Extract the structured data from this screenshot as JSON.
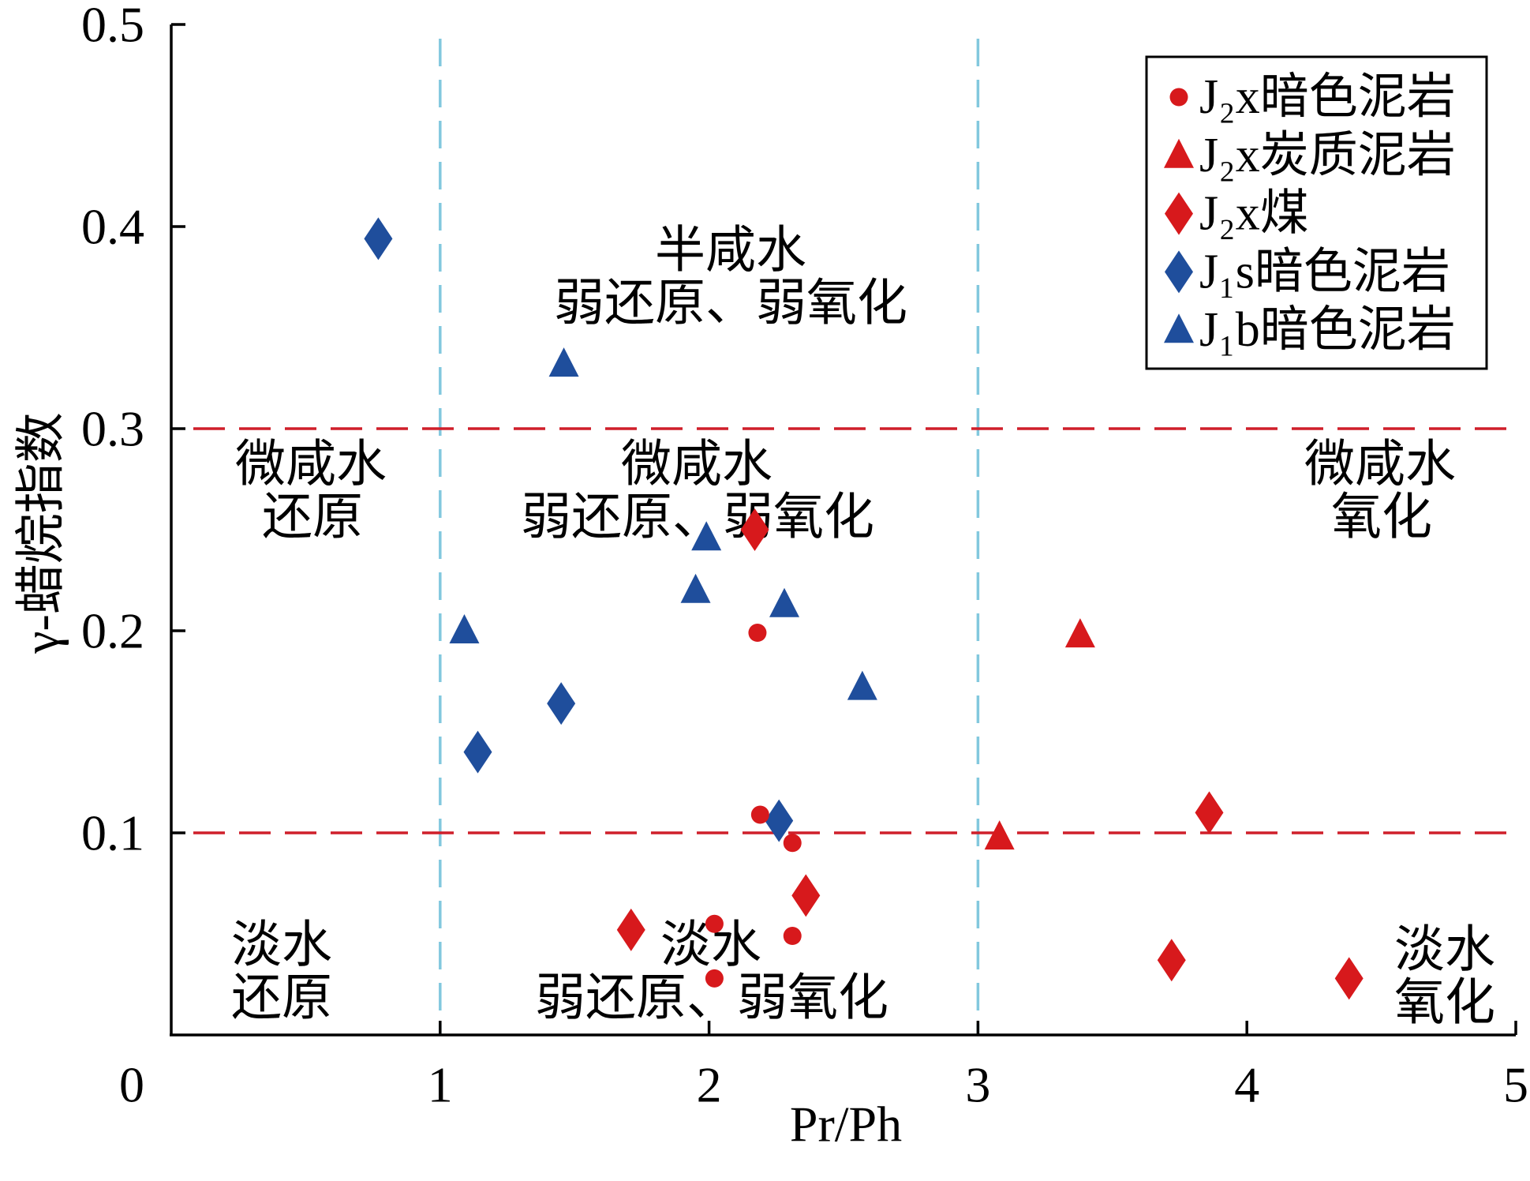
{
  "chart_data": {
    "type": "scatter",
    "title": "",
    "xlabel": "Pr/Ph",
    "ylabel": "γ-蜡烷指数",
    "xlim": [
      0,
      5
    ],
    "ylim": [
      0,
      0.5
    ],
    "x_ticks": [
      0,
      1,
      2,
      3,
      4,
      5
    ],
    "x_tick_labels": [
      "0",
      "1",
      "2",
      "3",
      "4",
      "5"
    ],
    "y_ticks": [
      0.1,
      0.2,
      0.3,
      0.4,
      0.5
    ],
    "y_tick_labels": [
      "0.1",
      "0.2",
      "0.3",
      "0.4",
      "0.5"
    ],
    "grid": false,
    "legend_position": "top-right",
    "reference_lines": {
      "x": [
        1,
        3
      ],
      "y": [
        0.1,
        0.3
      ],
      "x_color": "#82c8de",
      "y_color": "#cf1f2a",
      "line_style": "dashed"
    },
    "series": [
      {
        "name": "J₂x暗色泥岩",
        "marker": "circle",
        "color": "#d7191c",
        "x": [
          2.18,
          2.19,
          2.31,
          2.02,
          2.31,
          2.02
        ],
        "y": [
          0.199,
          0.109,
          0.095,
          0.055,
          0.049,
          0.028
        ]
      },
      {
        "name": "J₂x炭质泥岩",
        "marker": "triangle",
        "color": "#d7191c",
        "x": [
          3.38,
          3.08
        ],
        "y": [
          0.198,
          0.098
        ]
      },
      {
        "name": "J₂x煤",
        "marker": "diamond",
        "color": "#d7191c",
        "x": [
          2.17,
          2.36,
          1.71,
          3.86,
          3.72,
          4.38
        ],
        "y": [
          0.25,
          0.069,
          0.052,
          0.11,
          0.037,
          0.028
        ]
      },
      {
        "name": "J₁s暗色泥岩",
        "marker": "diamond",
        "color": "#1f4e9c",
        "x": [
          0.77,
          1.45,
          1.14,
          2.26
        ],
        "y": [
          0.394,
          0.164,
          0.14,
          0.106
        ]
      },
      {
        "name": "J₁b暗色泥岩",
        "marker": "triangle",
        "color": "#1f4e9c",
        "x": [
          1.46,
          1.99,
          1.95,
          2.28,
          1.09,
          2.57
        ],
        "y": [
          0.332,
          0.246,
          0.22,
          0.213,
          0.2,
          0.172
        ]
      }
    ],
    "annotations": [
      {
        "lines": [
          "半咸水",
          "弱还原、弱氧化"
        ]
      },
      {
        "lines": [
          "微咸水",
          "还原"
        ]
      },
      {
        "lines": [
          "微咸水",
          "弱还原、弱氧化"
        ]
      },
      {
        "lines": [
          "微咸水",
          "氧化"
        ]
      },
      {
        "lines": [
          "淡水",
          "还原"
        ]
      },
      {
        "lines": [
          "淡水",
          "弱还原、弱氧化"
        ]
      },
      {
        "lines": [
          "淡水",
          "氧化"
        ]
      }
    ]
  }
}
